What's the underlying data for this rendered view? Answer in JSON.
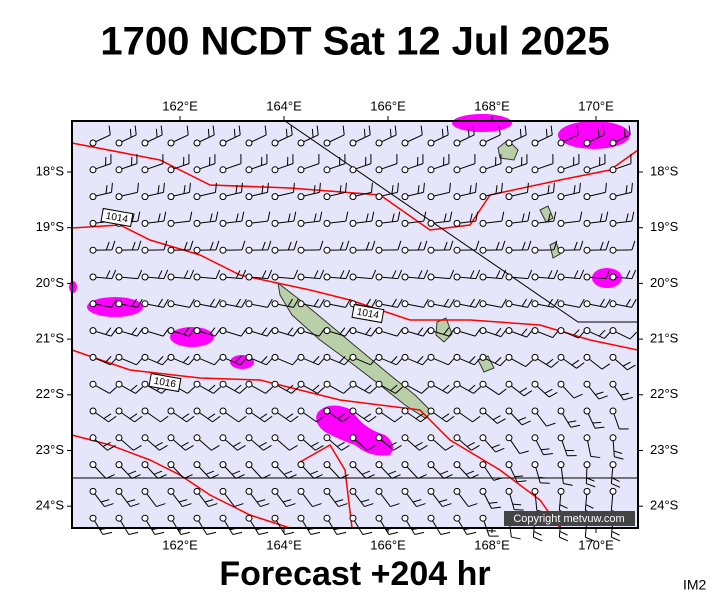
{
  "title": "1700 NCDT Sat 12 Jul 2025",
  "footer": "Forecast +204 hr",
  "image_id": "IM2",
  "longitude_labels": [
    "162°E",
    "164°E",
    "166°E",
    "168°E",
    "170°E"
  ],
  "latitude_labels": [
    "18°S",
    "19°S",
    "20°S",
    "21°S",
    "22°S",
    "23°S",
    "24°S"
  ],
  "isobar_labels": [
    "1014",
    "1014",
    "1016"
  ],
  "copyright": "Copyright metvuw.com"
}
